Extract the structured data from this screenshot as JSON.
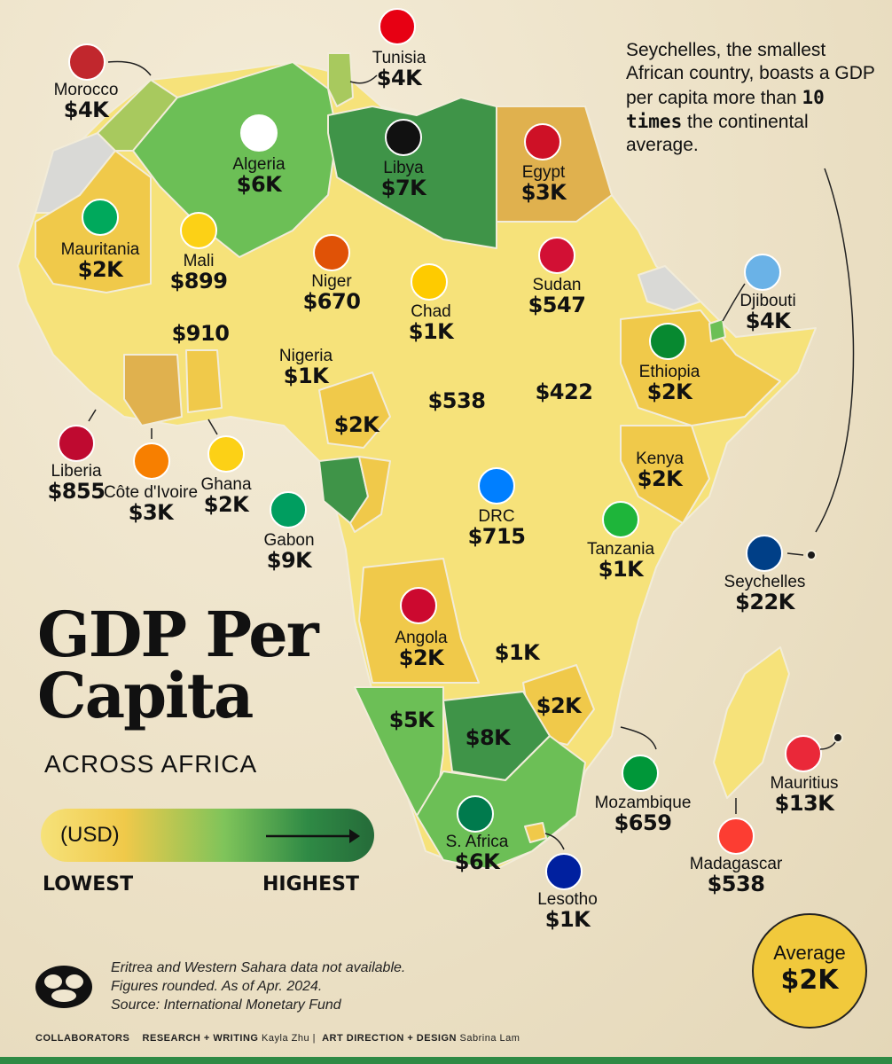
{
  "note": {
    "pre": "Seychelles, the smallest African country, boasts a GDP per capita more than ",
    "bold": "10 times",
    "post": " the continental average."
  },
  "title": {
    "line1": "GDP Per",
    "line2": "Capita",
    "subtitle": "ACROSS AFRICA"
  },
  "legend": {
    "unit": "(USD)",
    "low": "LOWEST",
    "high": "HIGHEST"
  },
  "average": {
    "label": "Average",
    "value": "$2K"
  },
  "footnote": {
    "line1": "Eritrea and Western Sahara data not available.",
    "line2": "Figures rounded. As of Apr. 2024.",
    "line3": "Source: International Monetary Fund"
  },
  "credits": {
    "collab": "COLLABORATORS",
    "rw_label": "RESEARCH + WRITING",
    "rw_name": "Kayla Zhu",
    "ad_label": "ART DIRECTION + DESIGN",
    "ad_name": "Sabrina Lam"
  },
  "colors": {
    "lowest": "#f6e27a",
    "low": "#f0c94a",
    "mid_low": "#e0b14e",
    "mid": "#7fc45a",
    "high": "#2f8a45",
    "highest": "#256b39",
    "no_data": "#d9d9d6"
  },
  "countries": [
    {
      "name": "Morocco",
      "value": "$4K"
    },
    {
      "name": "Tunisia",
      "value": "$4K"
    },
    {
      "name": "Algeria",
      "value": "$6K"
    },
    {
      "name": "Libya",
      "value": "$7K"
    },
    {
      "name": "Egypt",
      "value": "$3K"
    },
    {
      "name": "Mauritania",
      "value": "$2K"
    },
    {
      "name": "Mali",
      "value": "$899"
    },
    {
      "name": "Niger",
      "value": "$670"
    },
    {
      "name": "Chad",
      "value": "$1K"
    },
    {
      "name": "Sudan",
      "value": "$547"
    },
    {
      "name": "Djibouti",
      "value": "$4K"
    },
    {
      "name": "",
      "value": "$910"
    },
    {
      "name": "Nigeria",
      "value": "$1K"
    },
    {
      "name": "Ethiopia",
      "value": "$2K"
    },
    {
      "name": "",
      "value": "$538"
    },
    {
      "name": "",
      "value": "$422"
    },
    {
      "name": "",
      "value": "$2K"
    },
    {
      "name": "Liberia",
      "value": "$855"
    },
    {
      "name": "Côte d'Ivoire",
      "value": "$3K"
    },
    {
      "name": "Ghana",
      "value": "$2K"
    },
    {
      "name": "Gabon",
      "value": "$9K"
    },
    {
      "name": "DRC",
      "value": "$715"
    },
    {
      "name": "Kenya",
      "value": "$2K"
    },
    {
      "name": "Tanzania",
      "value": "$1K"
    },
    {
      "name": "Seychelles",
      "value": "$22K"
    },
    {
      "name": "Angola",
      "value": "$2K"
    },
    {
      "name": "",
      "value": "$1K"
    },
    {
      "name": "",
      "value": "$2K"
    },
    {
      "name": "",
      "value": "$5K"
    },
    {
      "name": "",
      "value": "$8K"
    },
    {
      "name": "S. Africa",
      "value": "$6K"
    },
    {
      "name": "Mozambique",
      "value": "$659"
    },
    {
      "name": "Mauritius",
      "value": "$13K"
    },
    {
      "name": "Madagascar",
      "value": "$538"
    },
    {
      "name": "Lesotho",
      "value": "$1K"
    }
  ]
}
